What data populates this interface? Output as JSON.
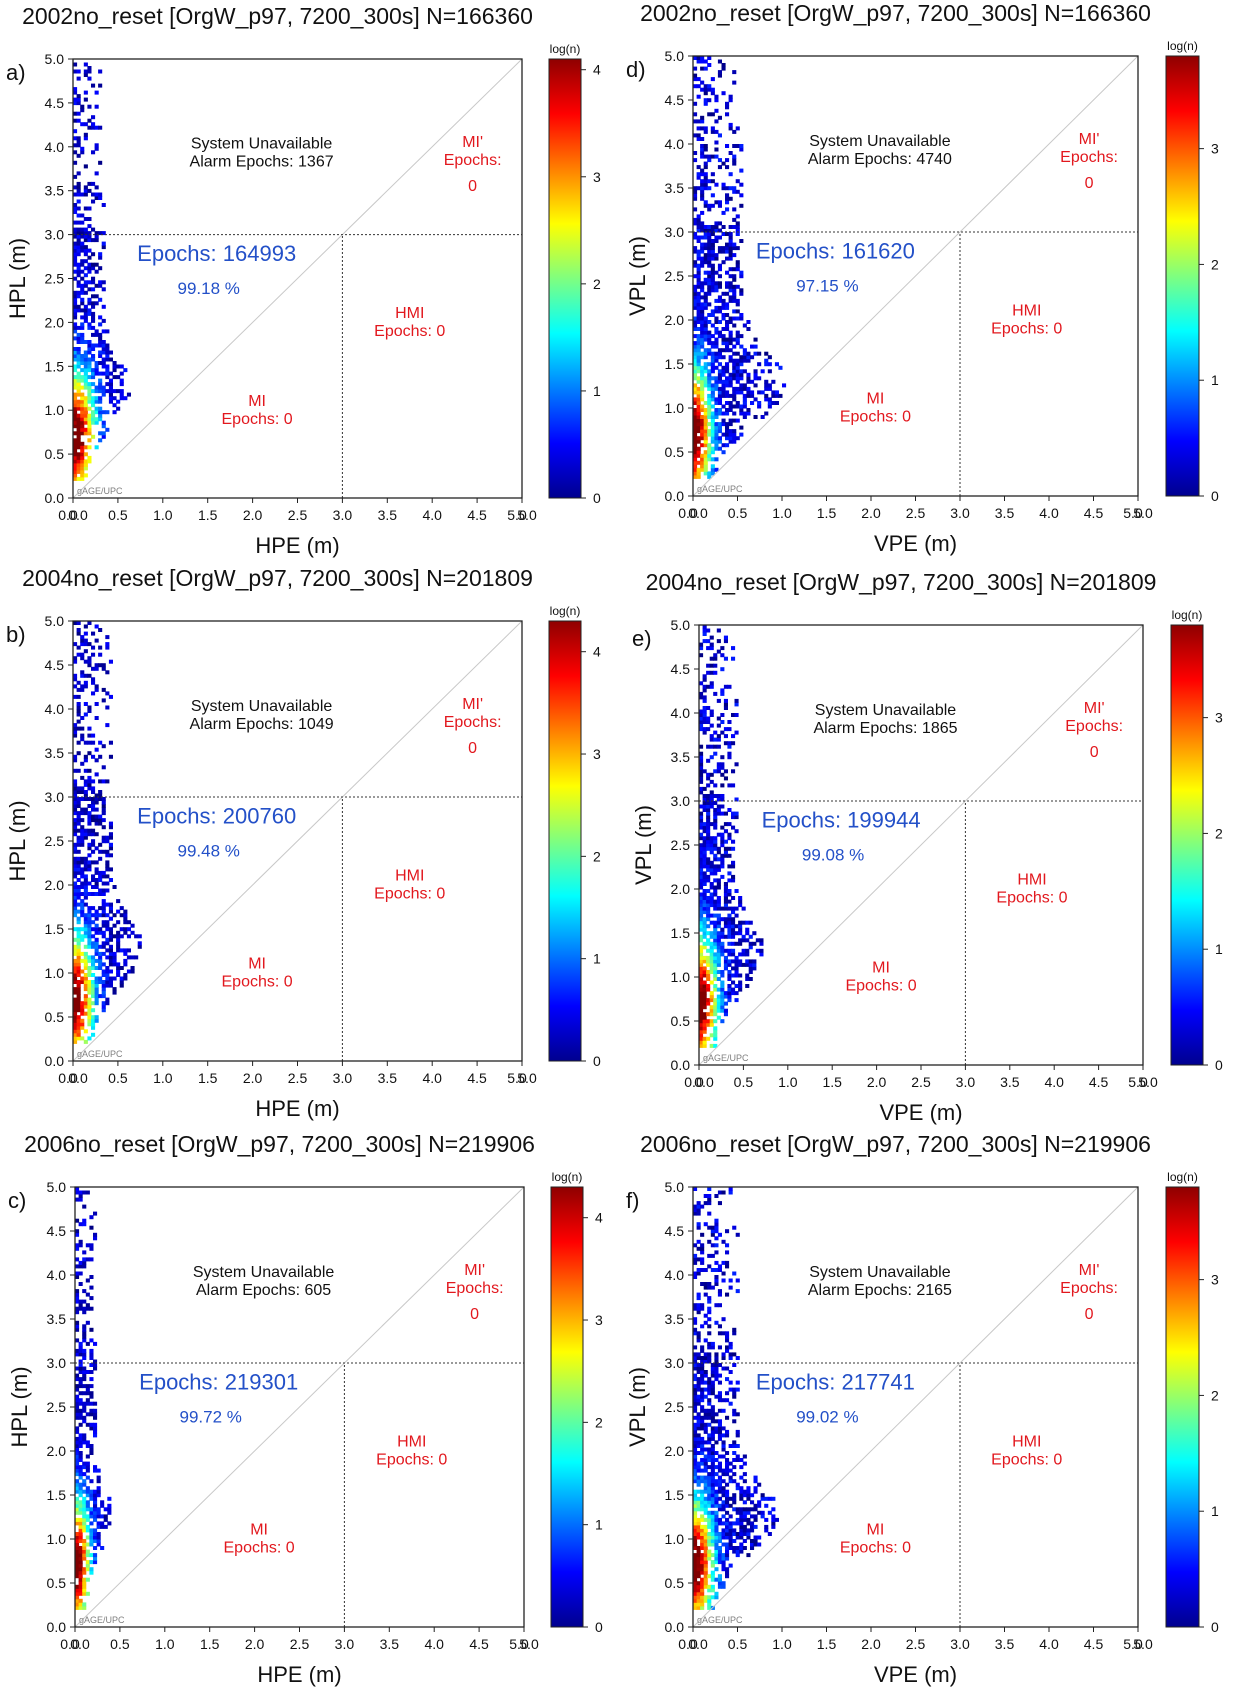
{
  "chart_data": [
    {
      "id": "a",
      "type": "heatmap",
      "panel_label": "a)",
      "title": "2002no_reset [OrgW_p97, 7200_300s] N=166360",
      "xlabel": "HPE (m)",
      "ylabel": "HPL (m)",
      "xlim": [
        0,
        5.0
      ],
      "ylim": [
        0,
        5.0
      ],
      "alarm_limit": 3.0,
      "xtick_labels": [
        "0.0",
        "0.0",
        "0.5",
        "1.0",
        "1.5",
        "2.0",
        "2.5",
        "3.0",
        "3.5",
        "4.0",
        "4.5",
        "5.0",
        "5.0"
      ],
      "ytick_labels": [
        "0.0",
        "0.5",
        "1.0",
        "1.5",
        "2.0",
        "2.5",
        "3.0",
        "3.5",
        "4.0",
        "4.5",
        "5.0"
      ],
      "colorbar": {
        "title": "log(n)",
        "min": 0,
        "max": 4.1,
        "ticks": [
          "0",
          "1",
          "2",
          "3",
          "4"
        ]
      },
      "available": {
        "label": "Epochs: 164993",
        "percent": "99.18 %"
      },
      "unavailable": {
        "line1": "System Unavailable",
        "line2": "Alarm Epochs: 1367"
      },
      "mi_prime": {
        "line1": "MI'",
        "line2": "Epochs:",
        "value": "0"
      },
      "hmi": {
        "line1": "HMI",
        "line2": "Epochs: 0"
      },
      "mi": {
        "line1": "MI",
        "line2": "Epochs: 0"
      },
      "credit": "gAGE/UPC"
    },
    {
      "id": "d",
      "type": "heatmap",
      "panel_label": "d)",
      "title": "2002no_reset [OrgW_p97, 7200_300s] N=166360",
      "xlabel": "VPE (m)",
      "ylabel": "VPL (m)",
      "xlim": [
        0,
        5.0
      ],
      "ylim": [
        0,
        5.0
      ],
      "alarm_limit": 3.0,
      "xtick_labels": [
        "0.0",
        "0.0",
        "0.5",
        "1.0",
        "1.5",
        "2.0",
        "2.5",
        "3.0",
        "3.5",
        "4.0",
        "4.5",
        "5.0",
        "5.0"
      ],
      "ytick_labels": [
        "0.0",
        "0.5",
        "1.0",
        "1.5",
        "2.0",
        "2.5",
        "3.0",
        "3.5",
        "4.0",
        "4.5",
        "5.0"
      ],
      "colorbar": {
        "title": "log(n)",
        "min": 0,
        "max": 3.8,
        "ticks": [
          "0",
          "1",
          "2",
          "3"
        ]
      },
      "available": {
        "label": "Epochs: 161620",
        "percent": "97.15 %"
      },
      "unavailable": {
        "line1": "System Unavailable",
        "line2": "Alarm Epochs: 4740"
      },
      "mi_prime": {
        "line1": "MI'",
        "line2": "Epochs:",
        "value": "0"
      },
      "hmi": {
        "line1": "HMI",
        "line2": "Epochs: 0"
      },
      "mi": {
        "line1": "MI",
        "line2": "Epochs: 0"
      },
      "credit": "gAGE/UPC"
    },
    {
      "id": "b",
      "type": "heatmap",
      "panel_label": "b)",
      "title": "2004no_reset [OrgW_p97, 7200_300s] N=201809",
      "xlabel": "HPE (m)",
      "ylabel": "HPL (m)",
      "xlim": [
        0,
        5.0
      ],
      "ylim": [
        0,
        5.0
      ],
      "alarm_limit": 3.0,
      "xtick_labels": [
        "0.0",
        "0.0",
        "0.5",
        "1.0",
        "1.5",
        "2.0",
        "2.5",
        "3.0",
        "3.5",
        "4.0",
        "4.5",
        "5.0",
        "5.0"
      ],
      "ytick_labels": [
        "0.0",
        "0.5",
        "1.0",
        "1.5",
        "2.0",
        "2.5",
        "3.0",
        "3.5",
        "4.0",
        "4.5",
        "5.0"
      ],
      "colorbar": {
        "title": "log(n)",
        "min": 0,
        "max": 4.3,
        "ticks": [
          "0",
          "1",
          "2",
          "3",
          "4"
        ]
      },
      "available": {
        "label": "Epochs: 200760",
        "percent": "99.48 %"
      },
      "unavailable": {
        "line1": "System Unavailable",
        "line2": "Alarm Epochs: 1049"
      },
      "mi_prime": {
        "line1": "MI'",
        "line2": "Epochs:",
        "value": "0"
      },
      "hmi": {
        "line1": "HMI",
        "line2": "Epochs: 0"
      },
      "mi": {
        "line1": "MI",
        "line2": "Epochs: 0"
      },
      "credit": "gAGE/UPC"
    },
    {
      "id": "e",
      "type": "heatmap",
      "panel_label": "e)",
      "title": "2004no_reset [OrgW_p97, 7200_300s] N=201809",
      "xlabel": "VPE (m)",
      "ylabel": "VPL (m)",
      "xlim": [
        0,
        5.0
      ],
      "ylim": [
        0,
        5.0
      ],
      "alarm_limit": 3.0,
      "xtick_labels": [
        "0.0",
        "0.0",
        "0.5",
        "1.0",
        "1.5",
        "2.0",
        "2.5",
        "3.0",
        "3.5",
        "4.0",
        "4.5",
        "5.0",
        "5.0"
      ],
      "ytick_labels": [
        "0.0",
        "0.5",
        "1.0",
        "1.5",
        "2.0",
        "2.5",
        "3.0",
        "3.5",
        "4.0",
        "4.5",
        "5.0"
      ],
      "colorbar": {
        "title": "log(n)",
        "min": 0,
        "max": 3.8,
        "ticks": [
          "0",
          "1",
          "2",
          "3"
        ]
      },
      "available": {
        "label": "Epochs: 199944",
        "percent": "99.08 %"
      },
      "unavailable": {
        "line1": "System Unavailable",
        "line2": "Alarm Epochs: 1865"
      },
      "mi_prime": {
        "line1": "MI'",
        "line2": "Epochs:",
        "value": "0"
      },
      "hmi": {
        "line1": "HMI",
        "line2": "Epochs: 0"
      },
      "mi": {
        "line1": "MI",
        "line2": "Epochs: 0"
      },
      "credit": "gAGE/UPC"
    },
    {
      "id": "c",
      "type": "heatmap",
      "panel_label": "c)",
      "title": "2006no_reset [OrgW_p97, 7200_300s] N=219906",
      "xlabel": "HPE (m)",
      "ylabel": "HPL (m)",
      "xlim": [
        0,
        5.0
      ],
      "ylim": [
        0,
        5.0
      ],
      "alarm_limit": 3.0,
      "xtick_labels": [
        "0.0",
        "0.0",
        "0.5",
        "1.0",
        "1.5",
        "2.0",
        "2.5",
        "3.0",
        "3.5",
        "4.0",
        "4.5",
        "5.0",
        "5.0"
      ],
      "ytick_labels": [
        "0.0",
        "0.5",
        "1.0",
        "1.5",
        "2.0",
        "2.5",
        "3.0",
        "3.5",
        "4.0",
        "4.5",
        "5.0"
      ],
      "colorbar": {
        "title": "log(n)",
        "min": 0,
        "max": 4.3,
        "ticks": [
          "0",
          "1",
          "2",
          "3",
          "4"
        ]
      },
      "available": {
        "label": "Epochs: 219301",
        "percent": "99.72 %"
      },
      "unavailable": {
        "line1": "System Unavailable",
        "line2": "Alarm Epochs: 605"
      },
      "mi_prime": {
        "line1": "MI'",
        "line2": "Epochs:",
        "value": "0"
      },
      "hmi": {
        "line1": "HMI",
        "line2": "Epochs: 0"
      },
      "mi": {
        "line1": "MI",
        "line2": "Epochs: 0"
      },
      "credit": "gAGE/UPC"
    },
    {
      "id": "f",
      "type": "heatmap",
      "panel_label": "f)",
      "title": "2006no_reset [OrgW_p97, 7200_300s] N=219906",
      "xlabel": "VPE (m)",
      "ylabel": "VPL (m)",
      "xlim": [
        0,
        5.0
      ],
      "ylim": [
        0,
        5.0
      ],
      "alarm_limit": 3.0,
      "xtick_labels": [
        "0.0",
        "0.0",
        "0.5",
        "1.0",
        "1.5",
        "2.0",
        "2.5",
        "3.0",
        "3.5",
        "4.0",
        "4.5",
        "5.0",
        "5.0"
      ],
      "ytick_labels": [
        "0.0",
        "0.5",
        "1.0",
        "1.5",
        "2.0",
        "2.5",
        "3.0",
        "3.5",
        "4.0",
        "4.5",
        "5.0"
      ],
      "colorbar": {
        "title": "log(n)",
        "min": 0,
        "max": 3.8,
        "ticks": [
          "0",
          "1",
          "2",
          "3"
        ]
      },
      "available": {
        "label": "Epochs: 217741",
        "percent": "99.02 %"
      },
      "unavailable": {
        "line1": "System Unavailable",
        "line2": "Alarm Epochs: 2165"
      },
      "mi_prime": {
        "line1": "MI'",
        "line2": "Epochs:",
        "value": "0"
      },
      "hmi": {
        "line1": "HMI",
        "line2": "Epochs: 0"
      },
      "mi": {
        "line1": "MI",
        "line2": "Epochs: 0"
      },
      "credit": "gAGE/UPC"
    }
  ]
}
